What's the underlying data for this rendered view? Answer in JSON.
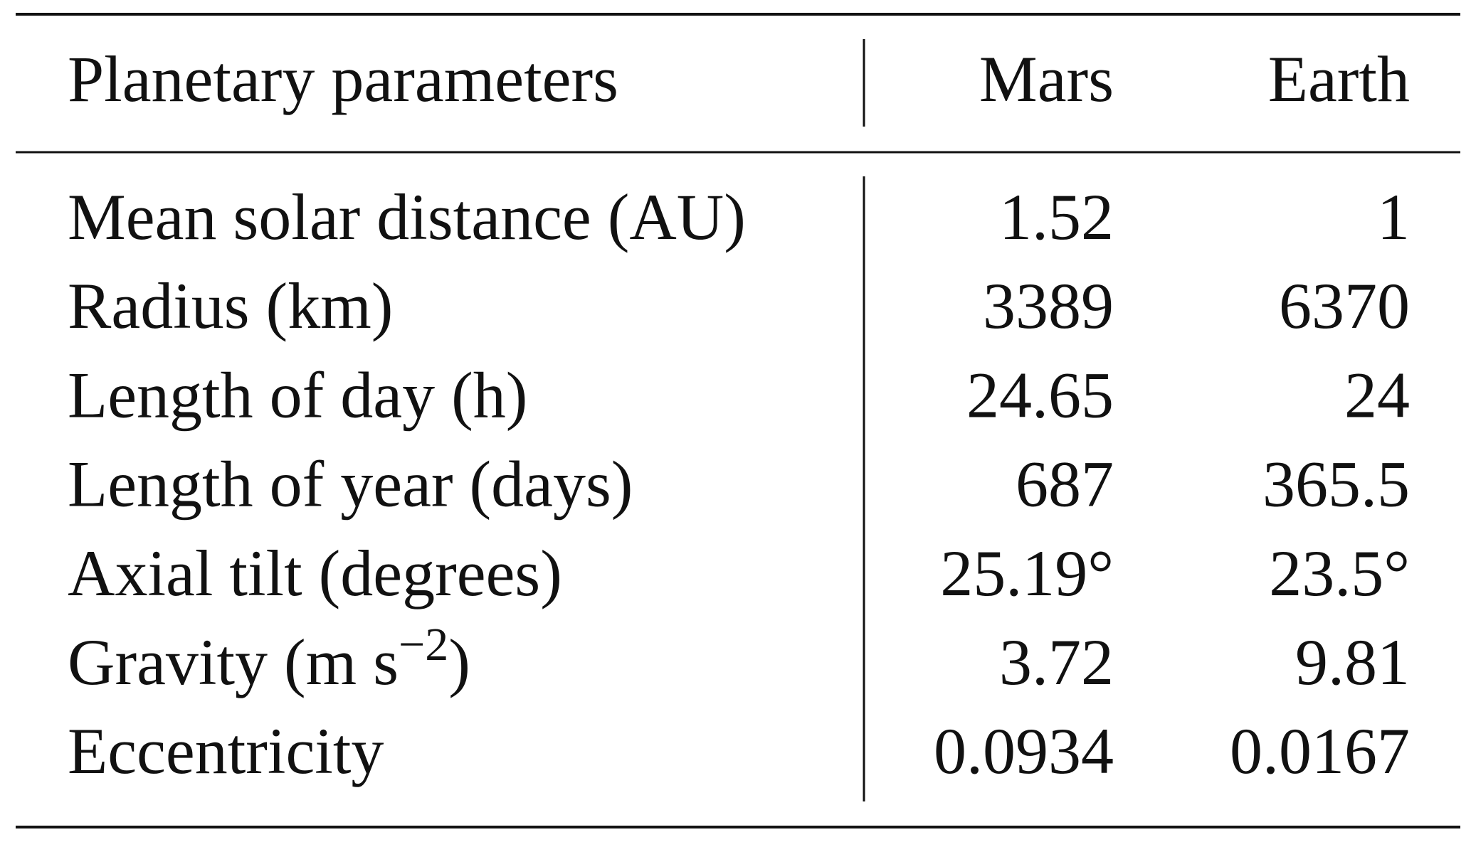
{
  "table": {
    "header": [
      "Planetary parameters",
      "Mars",
      "Earth"
    ],
    "rows": [
      [
        "Mean solar distance (AU)",
        "1.52",
        "1"
      ],
      [
        "Radius (km)",
        "3389",
        "6370"
      ],
      [
        "Length of day (h)",
        "24.65",
        "24"
      ],
      [
        "Length of year (days)",
        "687",
        "365.5"
      ],
      [
        "Axial tilt (degrees)",
        "25.19°",
        "23.5°"
      ],
      [
        [
          "Gravity (m s",
          "−2",
          ")"
        ],
        "3.72",
        "9.81"
      ],
      [
        "Eccentricity",
        "0.0934",
        "0.0167"
      ]
    ]
  }
}
